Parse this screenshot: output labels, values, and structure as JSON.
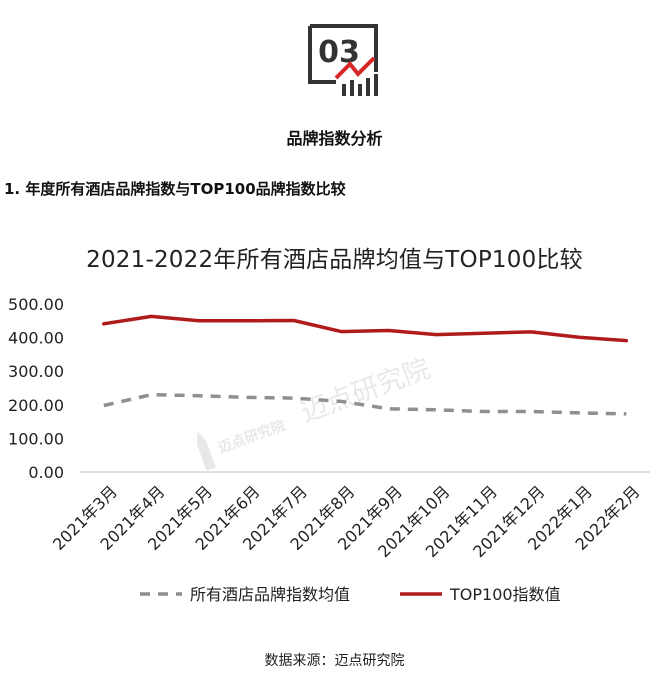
{
  "section": {
    "number": "03",
    "icon": "chart-trend-icon",
    "title": "品牌指数分析"
  },
  "subsection": {
    "title": "1. 年度所有酒店品牌指数与TOP100品牌指数比较"
  },
  "watermark": {
    "text": "迈点研究院",
    "logo_text": "迈点研究院"
  },
  "colors": {
    "top100": "#b01c1c",
    "all_hotels": "#8f8f8f",
    "icon_red": "#d62828",
    "icon_dark": "#333333"
  },
  "chart_data": {
    "type": "line",
    "title": "2021-2022年所有酒店品牌均值与TOP100比较",
    "categories": [
      "2021年3月",
      "2021年4月",
      "2021年5月",
      "2021年6月",
      "2021年7月",
      "2021年8月",
      "2021年9月",
      "2021年10月",
      "2021年11月",
      "2021年12月",
      "2022年1月",
      "2022年2月"
    ],
    "series": [
      {
        "name": "所有酒店品牌指数均值",
        "style": "dashed",
        "values": [
          198,
          230,
          227,
          222,
          220,
          210,
          188,
          185,
          180,
          180,
          176,
          173
        ]
      },
      {
        "name": "TOP100指数值",
        "style": "solid",
        "values": [
          441,
          463,
          450,
          450,
          451,
          418,
          421,
          409,
          413,
          417,
          401,
          391
        ]
      }
    ],
    "ylim": [
      0,
      500
    ],
    "yticks": [
      "0.00",
      "100.00",
      "200.00",
      "300.00",
      "400.00",
      "500.00"
    ],
    "xlabel": "",
    "ylabel": "",
    "grid": false,
    "legend_position": "bottom"
  },
  "source": "数据来源：迈点研究院"
}
